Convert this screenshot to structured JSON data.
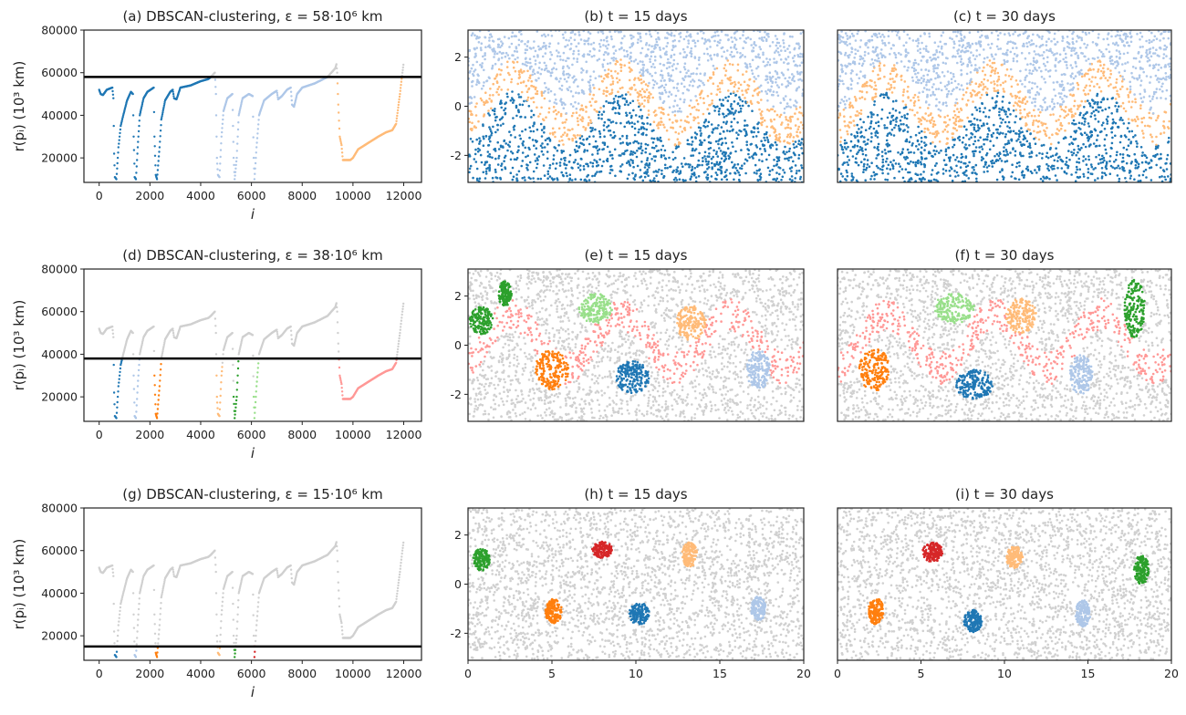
{
  "colors": {
    "dark_blue": "#1f77b4",
    "light_blue": "#aec7e8",
    "orange": "#ff7f0e",
    "light_orange": "#ffbb78",
    "green": "#2ca02c",
    "light_green": "#98df8a",
    "red": "#d62728",
    "pink": "#ff9896",
    "noise_gray": "#d0d0d0",
    "threshold_line": "#000000"
  },
  "reachability_curve": [
    [
      0,
      52000
    ],
    [
      60,
      50000
    ],
    [
      150,
      49500
    ],
    [
      300,
      52000
    ],
    [
      520,
      53000
    ],
    [
      560,
      48000
    ],
    [
      590,
      22000
    ],
    [
      620,
      11000
    ],
    [
      680,
      10000
    ],
    [
      760,
      25000
    ],
    [
      850,
      35000
    ],
    [
      950,
      40000
    ],
    [
      1100,
      47000
    ],
    [
      1250,
      51000
    ],
    [
      1330,
      50000
    ],
    [
      1360,
      30000
    ],
    [
      1400,
      11000
    ],
    [
      1450,
      10000
    ],
    [
      1520,
      25000
    ],
    [
      1600,
      40000
    ],
    [
      1750,
      48000
    ],
    [
      1900,
      51000
    ],
    [
      2150,
      53000
    ],
    [
      2180,
      30000
    ],
    [
      2230,
      12000
    ],
    [
      2280,
      10000
    ],
    [
      2380,
      25000
    ],
    [
      2450,
      38000
    ],
    [
      2600,
      47000
    ],
    [
      2800,
      51000
    ],
    [
      2900,
      52000
    ],
    [
      2950,
      48000
    ],
    [
      3050,
      47500
    ],
    [
      3200,
      53000
    ],
    [
      3600,
      54000
    ],
    [
      4000,
      56000
    ],
    [
      4300,
      57000
    ],
    [
      4400,
      58000
    ],
    [
      4560,
      60000
    ],
    [
      4600,
      50000
    ],
    [
      4640,
      20000
    ],
    [
      4680,
      12000
    ],
    [
      4740,
      11000
    ],
    [
      4820,
      30000
    ],
    [
      4900,
      42000
    ],
    [
      5050,
      48000
    ],
    [
      5250,
      50000
    ],
    [
      5300,
      20000
    ],
    [
      5340,
      10000
    ],
    [
      5420,
      20000
    ],
    [
      5500,
      40000
    ],
    [
      5650,
      48000
    ],
    [
      5900,
      50000
    ],
    [
      6050,
      49000
    ],
    [
      6090,
      20000
    ],
    [
      6120,
      10000
    ],
    [
      6200,
      25000
    ],
    [
      6300,
      40000
    ],
    [
      6500,
      47000
    ],
    [
      6800,
      50000
    ],
    [
      7000,
      51500
    ],
    [
      7050,
      47500
    ],
    [
      7200,
      49000
    ],
    [
      7400,
      52000
    ],
    [
      7550,
      53000
    ],
    [
      7600,
      45000
    ],
    [
      7680,
      44000
    ],
    [
      7800,
      50000
    ],
    [
      8000,
      53000
    ],
    [
      8500,
      55000
    ],
    [
      9000,
      58000
    ],
    [
      9300,
      62000
    ],
    [
      9350,
      64000
    ],
    [
      9380,
      60000
    ],
    [
      9420,
      45000
    ],
    [
      9480,
      30000
    ],
    [
      9550,
      26000
    ],
    [
      9600,
      19000
    ],
    [
      9900,
      19000
    ],
    [
      10000,
      20000
    ],
    [
      10200,
      24000
    ],
    [
      10600,
      27000
    ],
    [
      11000,
      30000
    ],
    [
      11300,
      32000
    ],
    [
      11550,
      33000
    ],
    [
      11700,
      36000
    ],
    [
      11850,
      50000
    ],
    [
      11950,
      60000
    ],
    [
      12000,
      65000
    ]
  ],
  "chart_data": [
    {
      "panel": "a",
      "type": "scatter",
      "title": "(a) DBSCAN-clustering, ε = 58·10⁶ km",
      "xlabel": "i",
      "ylabel": "r(pᵢ) (10³ km)",
      "xlim": [
        -600,
        12700
      ],
      "ylim": [
        8500,
        80000
      ],
      "xticks": [
        0,
        2000,
        4000,
        6000,
        8000,
        10000,
        12000
      ],
      "yticks": [
        20000,
        40000,
        60000,
        80000
      ],
      "epsilon": 58000,
      "clusters": [
        {
          "range": [
            0,
            4560
          ],
          "color": "dark_blue"
        },
        {
          "range": [
            4560,
            9200
          ],
          "color": "light_blue"
        },
        {
          "range": [
            9200,
            12000
          ],
          "color": "light_orange"
        }
      ]
    },
    {
      "panel": "b",
      "type": "scatter",
      "title": "(b) t = 15 days",
      "xlim": [
        0,
        20
      ],
      "ylim": [
        -3.1,
        3.1
      ],
      "xticks": [],
      "yticks": [
        -2,
        0,
        2
      ],
      "wave": {
        "center": -0.5,
        "amplitude": 1.1,
        "period": 6.5,
        "phase": 1.0,
        "width": 1.3
      },
      "bands": {
        "below": "dark_blue",
        "band": "light_orange",
        "above": "light_blue"
      },
      "blobs": []
    },
    {
      "panel": "c",
      "type": "scatter",
      "title": "(c) t = 30 days",
      "xlim": [
        0,
        20
      ],
      "ylim": [
        -3.1,
        3.1
      ],
      "xticks": [],
      "yticks": [],
      "wave": {
        "center": -0.5,
        "amplitude": 1.1,
        "period": 6.4,
        "phase": 1.4,
        "width": 1.3
      },
      "bands": {
        "below": "dark_blue",
        "band": "light_orange",
        "above": "light_blue"
      },
      "blobs": []
    },
    {
      "panel": "d",
      "type": "scatter",
      "title": "(d) DBSCAN-clustering, ε = 38·10⁶ km",
      "xlabel": "i",
      "ylabel": "r(pᵢ) (10³ km)",
      "xlim": [
        -600,
        12700
      ],
      "ylim": [
        8500,
        80000
      ],
      "xticks": [
        0,
        2000,
        4000,
        6000,
        8000,
        10000,
        12000
      ],
      "yticks": [
        20000,
        40000,
        60000,
        80000
      ],
      "epsilon": 38000,
      "clusters": [
        {
          "range": [
            550,
            900
          ],
          "color": "dark_blue"
        },
        {
          "range": [
            1340,
            1600
          ],
          "color": "light_blue"
        },
        {
          "range": [
            2170,
            2500
          ],
          "color": "orange"
        },
        {
          "range": [
            4600,
            4850
          ],
          "color": "light_orange"
        },
        {
          "range": [
            5290,
            5600
          ],
          "color": "green"
        },
        {
          "range": [
            6080,
            6320
          ],
          "color": "light_green"
        },
        {
          "range": [
            9380,
            11800
          ],
          "color": "pink"
        }
      ]
    },
    {
      "panel": "e",
      "type": "scatter",
      "title": "(e) t = 15 days",
      "xlim": [
        0,
        20
      ],
      "ylim": [
        -3.1,
        3.1
      ],
      "xticks": [],
      "yticks": [
        -2,
        0,
        2
      ],
      "wave": {
        "center": -0.5,
        "amplitude": 1.1,
        "period": 6.5,
        "phase": 1.0,
        "width": 1.3
      },
      "bands": {
        "below": "noise_gray",
        "band": "pink",
        "above": "noise_gray"
      },
      "blobs": [
        {
          "color": "green",
          "x": 0.8,
          "y": 1.0,
          "rx": 0.7,
          "ry": 0.55
        },
        {
          "color": "green",
          "x": 2.2,
          "y": 2.1,
          "rx": 0.4,
          "ry": 0.5
        },
        {
          "color": "light_green",
          "x": 7.6,
          "y": 1.5,
          "rx": 1.0,
          "ry": 0.6
        },
        {
          "color": "light_orange",
          "x": 13.3,
          "y": 0.9,
          "rx": 0.9,
          "ry": 0.7
        },
        {
          "color": "orange",
          "x": 5.0,
          "y": -1.0,
          "rx": 1.0,
          "ry": 0.8
        },
        {
          "color": "dark_blue",
          "x": 9.8,
          "y": -1.3,
          "rx": 1.0,
          "ry": 0.65
        },
        {
          "color": "light_blue",
          "x": 17.3,
          "y": -1.0,
          "rx": 0.7,
          "ry": 0.8
        }
      ]
    },
    {
      "panel": "f",
      "type": "scatter",
      "title": "(f) t = 30 days",
      "xlim": [
        0,
        20
      ],
      "ylim": [
        -3.1,
        3.1
      ],
      "xticks": [],
      "yticks": [],
      "wave": {
        "center": -0.5,
        "amplitude": 1.1,
        "period": 6.4,
        "phase": 1.4,
        "width": 1.3
      },
      "bands": {
        "below": "noise_gray",
        "band": "pink",
        "above": "noise_gray"
      },
      "blobs": [
        {
          "color": "green",
          "x": 17.8,
          "y": 1.5,
          "rx": 0.6,
          "ry": 1.2
        },
        {
          "color": "light_green",
          "x": 7.0,
          "y": 1.5,
          "rx": 1.2,
          "ry": 0.6
        },
        {
          "color": "light_orange",
          "x": 11.0,
          "y": 1.2,
          "rx": 0.9,
          "ry": 0.7
        },
        {
          "color": "orange",
          "x": 2.2,
          "y": -1.0,
          "rx": 0.9,
          "ry": 0.9
        },
        {
          "color": "dark_blue",
          "x": 8.2,
          "y": -1.6,
          "rx": 1.1,
          "ry": 0.6
        },
        {
          "color": "light_blue",
          "x": 14.6,
          "y": -1.2,
          "rx": 0.7,
          "ry": 0.8
        }
      ]
    },
    {
      "panel": "g",
      "type": "scatter",
      "title": "(g) DBSCAN-clustering, ε = 15·10⁶ km",
      "xlabel": "i",
      "ylabel": "r(pᵢ) (10³ km)",
      "xlim": [
        -600,
        12700
      ],
      "ylim": [
        8500,
        80000
      ],
      "xticks": [
        0,
        2000,
        4000,
        6000,
        8000,
        10000,
        12000
      ],
      "yticks": [
        20000,
        40000,
        60000,
        80000
      ],
      "epsilon": 15000,
      "clusters": [
        {
          "range": [
            580,
            720
          ],
          "color": "dark_blue"
        },
        {
          "range": [
            1380,
            1480
          ],
          "color": "light_blue"
        },
        {
          "range": [
            2200,
            2320
          ],
          "color": "orange"
        },
        {
          "range": [
            4650,
            4780
          ],
          "color": "light_orange"
        },
        {
          "range": [
            5310,
            5400
          ],
          "color": "green"
        },
        {
          "range": [
            6090,
            6170
          ],
          "color": "red"
        }
      ]
    },
    {
      "panel": "h",
      "type": "scatter",
      "title": "(h) t = 15 days",
      "xlim": [
        0,
        20
      ],
      "ylim": [
        -3.1,
        3.1
      ],
      "xticks": [
        0,
        5,
        10,
        15,
        20
      ],
      "yticks": [
        -2,
        0,
        2
      ],
      "bands": {
        "below": "noise_gray",
        "band": "noise_gray",
        "above": "noise_gray"
      },
      "blobs": [
        {
          "color": "green",
          "x": 0.8,
          "y": 1.0,
          "rx": 0.5,
          "ry": 0.45
        },
        {
          "color": "red",
          "x": 8.0,
          "y": 1.4,
          "rx": 0.6,
          "ry": 0.35
        },
        {
          "color": "light_orange",
          "x": 13.2,
          "y": 1.2,
          "rx": 0.45,
          "ry": 0.5
        },
        {
          "color": "orange",
          "x": 5.1,
          "y": -1.1,
          "rx": 0.5,
          "ry": 0.5
        },
        {
          "color": "dark_blue",
          "x": 10.2,
          "y": -1.2,
          "rx": 0.6,
          "ry": 0.45
        },
        {
          "color": "light_blue",
          "x": 17.3,
          "y": -1.0,
          "rx": 0.45,
          "ry": 0.5
        }
      ]
    },
    {
      "panel": "i",
      "type": "scatter",
      "title": "(i) t = 30 days",
      "xlim": [
        0,
        20
      ],
      "ylim": [
        -3.1,
        3.1
      ],
      "xticks": [
        0,
        5,
        10,
        15,
        20
      ],
      "yticks": [],
      "bands": {
        "below": "noise_gray",
        "band": "noise_gray",
        "above": "noise_gray"
      },
      "blobs": [
        {
          "color": "red",
          "x": 5.7,
          "y": 1.3,
          "rx": 0.6,
          "ry": 0.4
        },
        {
          "color": "light_orange",
          "x": 10.6,
          "y": 1.1,
          "rx": 0.5,
          "ry": 0.45
        },
        {
          "color": "green",
          "x": 18.2,
          "y": 0.6,
          "rx": 0.45,
          "ry": 0.6
        },
        {
          "color": "orange",
          "x": 2.3,
          "y": -1.1,
          "rx": 0.45,
          "ry": 0.55
        },
        {
          "color": "dark_blue",
          "x": 8.1,
          "y": -1.5,
          "rx": 0.55,
          "ry": 0.45
        },
        {
          "color": "light_blue",
          "x": 14.7,
          "y": -1.2,
          "rx": 0.45,
          "ry": 0.55
        }
      ]
    }
  ]
}
